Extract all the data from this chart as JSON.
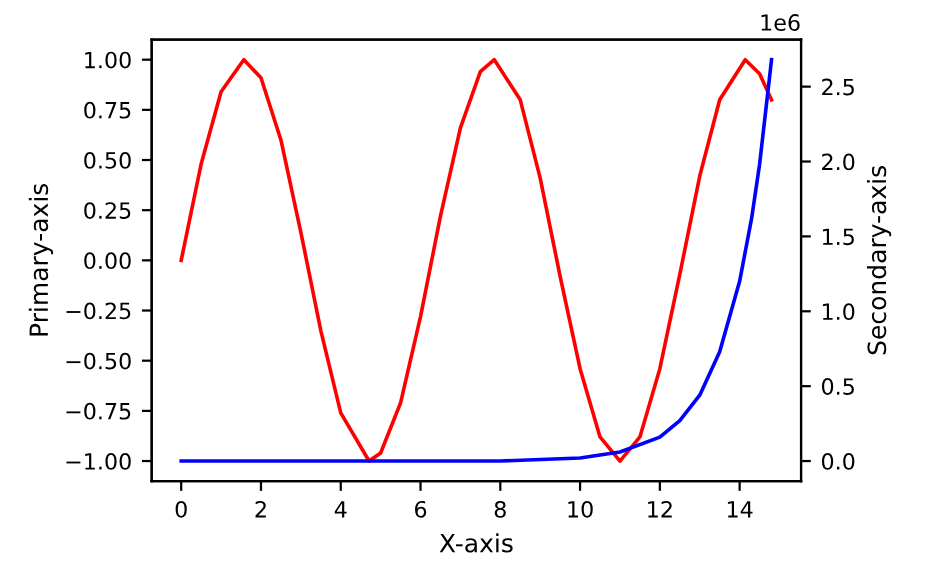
{
  "chart_data": {
    "type": "line",
    "xlabel": "X-axis",
    "ylabel": "Primary-axis",
    "y2label": "Secondary-axis",
    "annotations": [
      "1e6"
    ],
    "series": [
      {
        "color": "#ff0000",
        "x": [
          0,
          0.5,
          1,
          1.57,
          2,
          2.5,
          3,
          3.5,
          4,
          4.71,
          5,
          5.5,
          6,
          6.5,
          7,
          7.5,
          7.85,
          8.5,
          9,
          9.5,
          10,
          10.5,
          11,
          11.5,
          12,
          12.5,
          13,
          13.5,
          14.14,
          14.5,
          14.8
        ],
        "values": [
          0,
          0.48,
          0.84,
          1.0,
          0.91,
          0.6,
          0.14,
          -0.35,
          -0.76,
          -1.0,
          -0.96,
          -0.71,
          -0.28,
          0.22,
          0.66,
          0.94,
          1.0,
          0.8,
          0.41,
          -0.08,
          -0.54,
          -0.88,
          -1.0,
          -0.88,
          -0.54,
          -0.07,
          0.42,
          0.8,
          1.0,
          0.93,
          0.8
        ]
      },
      {
        "color": "#0000ff",
        "axis": "y2",
        "x": [
          0,
          2,
          4,
          6,
          8,
          10,
          11,
          12,
          12.5,
          13,
          13.5,
          14,
          14.3,
          14.5,
          14.8
        ],
        "values": [
          0,
          0,
          0,
          0,
          0,
          0.02,
          0.06,
          0.16,
          0.27,
          0.44,
          0.73,
          1.2,
          1.62,
          1.98,
          2.68
        ]
      }
    ],
    "xlim": [
      -0.74,
      15.54
    ],
    "xticks": [
      0,
      2,
      4,
      6,
      8,
      10,
      12,
      14
    ],
    "ylim": [
      -1.1,
      1.1
    ],
    "yticks": [
      {
        "value": -1,
        "label": "−1.00"
      },
      {
        "value": -0.75,
        "label": "−0.75"
      },
      {
        "value": -0.5,
        "label": "−0.50"
      },
      {
        "value": -0.25,
        "label": "−0.25"
      },
      {
        "value": 0,
        "label": "0.00"
      },
      {
        "value": 0.25,
        "label": "0.25"
      },
      {
        "value": 0.5,
        "label": "0.50"
      },
      {
        "value": 0.75,
        "label": "0.75"
      },
      {
        "value": 1,
        "label": "1.00"
      }
    ],
    "y2lim": [
      -0.134,
      2.814
    ],
    "y2ticks": [
      {
        "value": 0,
        "label": "0.0"
      },
      0.5,
      {
        "value": 1,
        "label": "1.0"
      },
      1.5,
      {
        "value": 2,
        "label": "2.0"
      },
      2.5
    ],
    "grid": false,
    "legend": false,
    "marker": "none",
    "line_style": "solid"
  }
}
